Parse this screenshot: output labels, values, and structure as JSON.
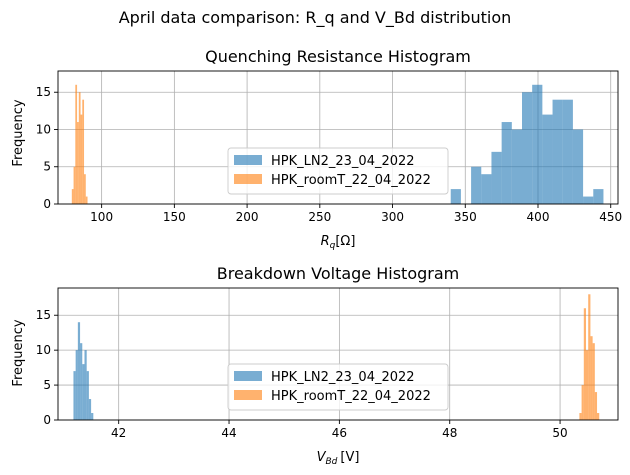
{
  "figure": {
    "suptitle": "April data comparison: R_q and V_Bd distribution"
  },
  "colors": {
    "series_a": "#1f77b4",
    "series_b": "#ff7f0e",
    "grid": "#b0b0b0",
    "axis": "#000000"
  },
  "chart_data": [
    {
      "type": "bar",
      "title": "Quenching Resistance Histogram",
      "xlabel_main": "R",
      "xlabel_sub": "q",
      "xlabel_suffix": "[Ω]",
      "ylabel": "Frequency",
      "xlim": [
        70,
        455
      ],
      "ylim": [
        0,
        17.85
      ],
      "xticks": [
        100,
        150,
        200,
        250,
        300,
        350,
        400,
        450
      ],
      "yticks": [
        0,
        5,
        10,
        15
      ],
      "grid": true,
      "legend": "center",
      "series": [
        {
          "name": "HPK_LN2_23_04_2022",
          "color": "#1f77b4",
          "alpha": 0.6,
          "bins": [
            {
              "x0": 340,
              "x1": 347,
              "y": 2
            },
            {
              "x0": 347,
              "x1": 354,
              "y": 0
            },
            {
              "x0": 354,
              "x1": 361,
              "y": 5
            },
            {
              "x0": 361,
              "x1": 368,
              "y": 4
            },
            {
              "x0": 368,
              "x1": 375,
              "y": 7
            },
            {
              "x0": 375,
              "x1": 382,
              "y": 11
            },
            {
              "x0": 382,
              "x1": 389,
              "y": 10
            },
            {
              "x0": 389,
              "x1": 396,
              "y": 15
            },
            {
              "x0": 396,
              "x1": 403,
              "y": 16
            },
            {
              "x0": 403,
              "x1": 410,
              "y": 12
            },
            {
              "x0": 410,
              "x1": 417,
              "y": 14
            },
            {
              "x0": 417,
              "x1": 424,
              "y": 14
            },
            {
              "x0": 424,
              "x1": 431,
              "y": 10
            },
            {
              "x0": 431,
              "x1": 438,
              "y": 1
            },
            {
              "x0": 438,
              "x1": 445,
              "y": 2
            }
          ]
        },
        {
          "name": "HPK_roomT_22_04_2022",
          "color": "#ff7f0e",
          "alpha": 0.6,
          "bins": [
            {
              "x0": 79.5,
              "x1": 80.7,
              "y": 2
            },
            {
              "x0": 80.7,
              "x1": 81.9,
              "y": 5
            },
            {
              "x0": 81.9,
              "x1": 83.1,
              "y": 16
            },
            {
              "x0": 83.1,
              "x1": 84.3,
              "y": 11
            },
            {
              "x0": 84.3,
              "x1": 85.5,
              "y": 15
            },
            {
              "x0": 85.5,
              "x1": 86.7,
              "y": 12
            },
            {
              "x0": 86.7,
              "x1": 87.9,
              "y": 14
            },
            {
              "x0": 87.9,
              "x1": 89.1,
              "y": 4
            },
            {
              "x0": 89.1,
              "x1": 90.3,
              "y": 1
            }
          ]
        }
      ]
    },
    {
      "type": "bar",
      "title": "Breakdown Voltage Histogram",
      "xlabel_main": "V",
      "xlabel_sub": "Bd",
      "xlabel_suffix": "[V]",
      "ylabel": "Frequency",
      "xlim": [
        40.9,
        51.05
      ],
      "ylim": [
        0,
        18.9
      ],
      "xticks": [
        42,
        44,
        46,
        48,
        50
      ],
      "yticks": [
        0,
        5,
        10,
        15
      ],
      "grid": true,
      "legend": "center",
      "series": [
        {
          "name": "HPK_LN2_23_04_2022",
          "color": "#1f77b4",
          "alpha": 0.6,
          "bins": [
            {
              "x0": 41.18,
              "x1": 41.22,
              "y": 7
            },
            {
              "x0": 41.22,
              "x1": 41.26,
              "y": 10
            },
            {
              "x0": 41.26,
              "x1": 41.3,
              "y": 14
            },
            {
              "x0": 41.3,
              "x1": 41.34,
              "y": 11
            },
            {
              "x0": 41.34,
              "x1": 41.38,
              "y": 8
            },
            {
              "x0": 41.38,
              "x1": 41.42,
              "y": 10
            },
            {
              "x0": 41.42,
              "x1": 41.46,
              "y": 7
            },
            {
              "x0": 41.46,
              "x1": 41.5,
              "y": 3
            },
            {
              "x0": 41.5,
              "x1": 41.54,
              "y": 1
            }
          ]
        },
        {
          "name": "HPK_roomT_22_04_2022",
          "color": "#ff7f0e",
          "alpha": 0.6,
          "bins": [
            {
              "x0": 50.35,
              "x1": 50.39,
              "y": 1
            },
            {
              "x0": 50.39,
              "x1": 50.43,
              "y": 5
            },
            {
              "x0": 50.43,
              "x1": 50.47,
              "y": 16
            },
            {
              "x0": 50.47,
              "x1": 50.51,
              "y": 10
            },
            {
              "x0": 50.51,
              "x1": 50.55,
              "y": 18
            },
            {
              "x0": 50.55,
              "x1": 50.59,
              "y": 12
            },
            {
              "x0": 50.59,
              "x1": 50.63,
              "y": 11
            },
            {
              "x0": 50.63,
              "x1": 50.67,
              "y": 4
            },
            {
              "x0": 50.67,
              "x1": 50.71,
              "y": 1
            }
          ]
        }
      ]
    }
  ]
}
